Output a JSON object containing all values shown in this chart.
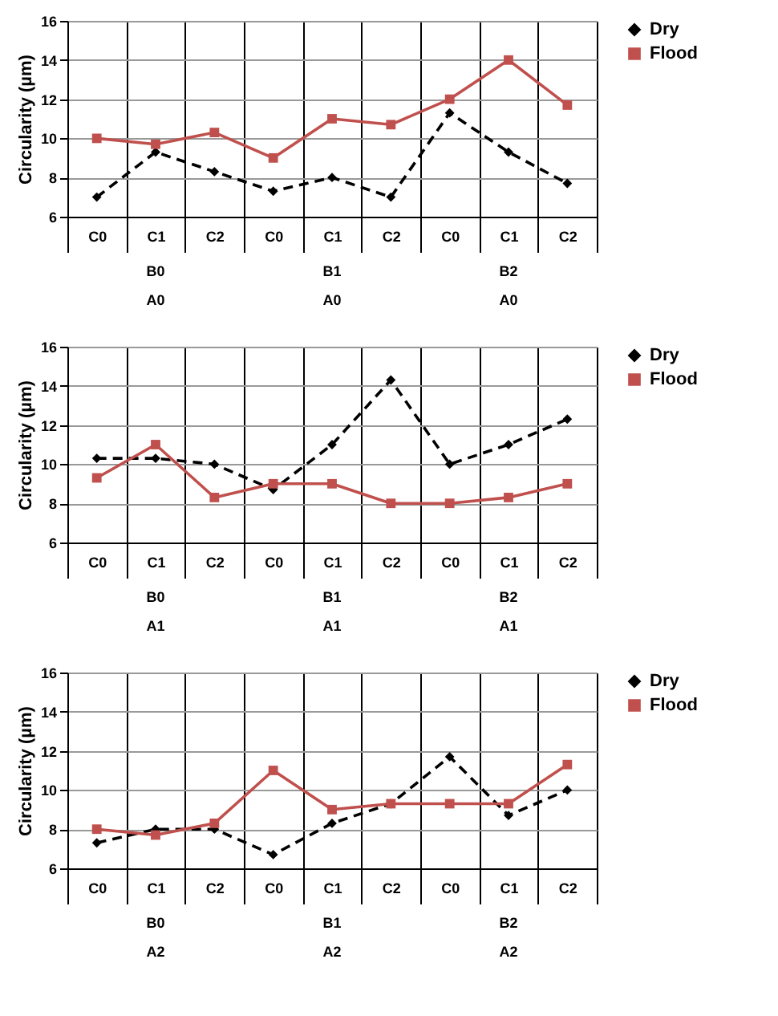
{
  "chart_data": [
    {
      "type": "line",
      "ylabel": "Circularity (µm)",
      "categories": [
        "C0",
        "C1",
        "C2",
        "C0",
        "C1",
        "C2",
        "C0",
        "C1",
        "C2"
      ],
      "annotations": [
        "B0",
        "B1",
        "B2",
        "A0",
        "A0",
        "A0"
      ],
      "ylim": [
        6,
        16
      ],
      "yticks": [
        6,
        8,
        10,
        12,
        14,
        16
      ],
      "grid": true,
      "legend": "right",
      "series": [
        {
          "name": "Dry",
          "color": "#000000",
          "marker": "diamond",
          "line_style": "dashed",
          "values": [
            7,
            9.3,
            8.3,
            7.3,
            8,
            7,
            11.3,
            9.3,
            7.7
          ]
        },
        {
          "name": "Flood",
          "color": "#c0504d",
          "marker": "square",
          "line_style": "solid",
          "values": [
            10,
            9.7,
            10.3,
            9,
            11,
            10.7,
            12,
            14,
            11.7
          ]
        }
      ]
    },
    {
      "type": "line",
      "ylabel": "Circularity (µm)",
      "categories": [
        "C0",
        "C1",
        "C2",
        "C0",
        "C1",
        "C2",
        "C0",
        "C1",
        "C2"
      ],
      "annotations": [
        "B0",
        "B1",
        "B2",
        "A1",
        "A1",
        "A1"
      ],
      "ylim": [
        6,
        16
      ],
      "yticks": [
        6,
        8,
        10,
        12,
        14,
        16
      ],
      "grid": true,
      "legend": "right",
      "series": [
        {
          "name": "Dry",
          "color": "#000000",
          "marker": "diamond",
          "line_style": "dashed",
          "values": [
            10.3,
            10.3,
            10,
            8.7,
            11,
            14.3,
            10,
            11,
            12.3
          ]
        },
        {
          "name": "Flood",
          "color": "#c0504d",
          "marker": "square",
          "line_style": "solid",
          "values": [
            9.3,
            11,
            8.3,
            9,
            9,
            8,
            8,
            8.3,
            9
          ]
        }
      ]
    },
    {
      "type": "line",
      "ylabel": "Circularity (µm)",
      "categories": [
        "C0",
        "C1",
        "C2",
        "C0",
        "C1",
        "C2",
        "C0",
        "C1",
        "C2"
      ],
      "annotations": [
        "B0",
        "B1",
        "B2",
        "A2",
        "A2",
        "A2"
      ],
      "ylim": [
        6,
        16
      ],
      "yticks": [
        6,
        8,
        10,
        12,
        14,
        16
      ],
      "grid": true,
      "legend": "right",
      "series": [
        {
          "name": "Dry",
          "color": "#000000",
          "marker": "diamond",
          "line_style": "dashed",
          "values": [
            7.3,
            8,
            8,
            6.7,
            8.3,
            9.3,
            11.7,
            8.7,
            10
          ]
        },
        {
          "name": "Flood",
          "color": "#c0504d",
          "marker": "square",
          "line_style": "solid",
          "values": [
            8,
            7.7,
            8.3,
            11,
            9,
            9.3,
            9.3,
            9.3,
            11.3
          ]
        }
      ]
    }
  ]
}
